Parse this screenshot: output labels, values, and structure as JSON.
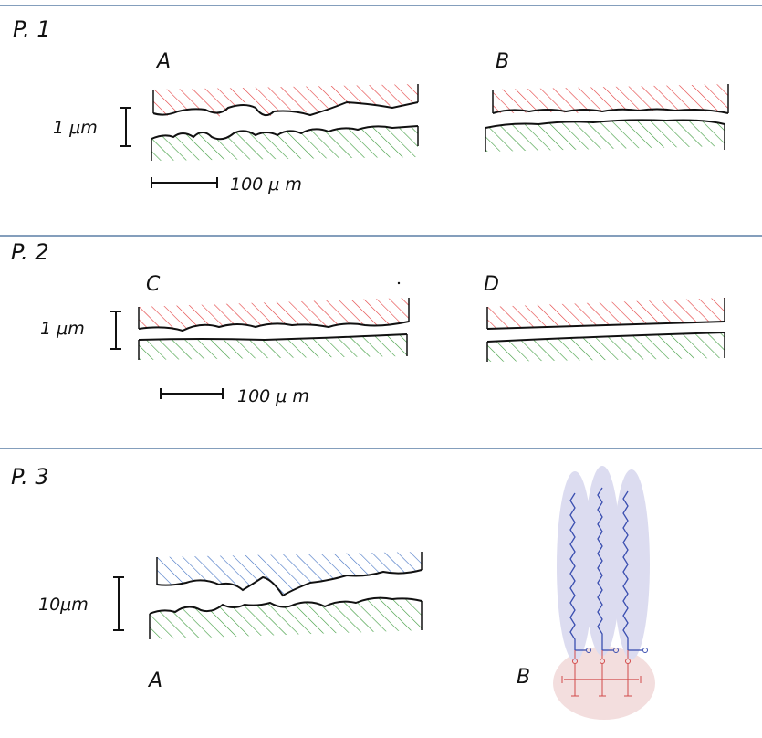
{
  "colors": {
    "divider": "#5b7fa6",
    "ink": "#111111",
    "hatch_red": "#e23a3a",
    "hatch_green": "#3a9a3a",
    "hatch_blue": "#3f6fc2",
    "lipid_blue": "#3b4fb0",
    "lipid_red": "#d24a4a",
    "cloud_blue": "#dcdcf0",
    "cloud_pink": "#f3dede"
  },
  "p1": {
    "title": "P. 1",
    "label_a": "A",
    "label_b": "B",
    "scale_vertical": "1 μm",
    "scale_horizontal": "100 μ m"
  },
  "p2": {
    "title": "P. 2",
    "label_c": "C",
    "label_d": "D",
    "scale_vertical": "1 μm",
    "scale_horizontal": "100 μ m"
  },
  "p3": {
    "title": "P. 3",
    "label_a": "A",
    "label_b": "B",
    "scale_vertical": "10μm"
  },
  "icons": {
    "lipid_diagram": "triglyceride-molecule-icon"
  }
}
